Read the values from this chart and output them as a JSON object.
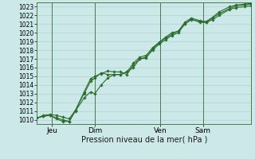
{
  "xlabel": "Pression niveau de la mer( hPa )",
  "bg_color": "#cce8e8",
  "grid_color": "#aacccc",
  "line_color": "#2d6e2d",
  "marker_color": "#2d6e2d",
  "ylim": [
    1009.5,
    1023.5
  ],
  "yticks": [
    1010,
    1011,
    1012,
    1013,
    1014,
    1015,
    1016,
    1017,
    1018,
    1019,
    1020,
    1021,
    1022,
    1023
  ],
  "xtick_labels": [
    "Jeu",
    "Dim",
    "Ven",
    "Sam"
  ],
  "xtick_positions": [
    0.07,
    0.27,
    0.575,
    0.775
  ],
  "vline_positions": [
    0.07,
    0.27,
    0.575,
    0.775
  ],
  "series": [
    [
      [
        0.0,
        1010.2
      ],
      [
        0.03,
        1010.4
      ],
      [
        0.06,
        1010.5
      ],
      [
        0.09,
        1010.2
      ],
      [
        0.12,
        1010.0
      ],
      [
        0.15,
        1009.8
      ],
      [
        0.18,
        1011.1
      ],
      [
        0.22,
        1013.2
      ],
      [
        0.25,
        1014.7
      ],
      [
        0.27,
        1015.0
      ],
      [
        0.3,
        1015.3
      ],
      [
        0.33,
        1015.6
      ],
      [
        0.36,
        1015.5
      ],
      [
        0.39,
        1015.5
      ],
      [
        0.42,
        1015.2
      ],
      [
        0.45,
        1016.3
      ],
      [
        0.48,
        1017.0
      ],
      [
        0.51,
        1017.2
      ],
      [
        0.54,
        1018.0
      ],
      [
        0.57,
        1018.7
      ],
      [
        0.6,
        1019.2
      ],
      [
        0.63,
        1019.7
      ],
      [
        0.66,
        1020.0
      ],
      [
        0.69,
        1021.0
      ],
      [
        0.72,
        1021.6
      ],
      [
        0.76,
        1021.2
      ],
      [
        0.79,
        1021.2
      ],
      [
        0.82,
        1021.7
      ],
      [
        0.85,
        1022.2
      ],
      [
        0.9,
        1022.8
      ],
      [
        0.93,
        1023.1
      ],
      [
        0.97,
        1023.2
      ],
      [
        1.0,
        1023.3
      ]
    ],
    [
      [
        0.0,
        1010.2
      ],
      [
        0.03,
        1010.4
      ],
      [
        0.06,
        1010.5
      ],
      [
        0.09,
        1010.1
      ],
      [
        0.12,
        1009.8
      ],
      [
        0.15,
        1009.8
      ],
      [
        0.18,
        1011.0
      ],
      [
        0.22,
        1012.5
      ],
      [
        0.25,
        1013.2
      ],
      [
        0.27,
        1013.0
      ],
      [
        0.3,
        1014.0
      ],
      [
        0.33,
        1014.8
      ],
      [
        0.36,
        1015.2
      ],
      [
        0.39,
        1015.2
      ],
      [
        0.42,
        1015.5
      ],
      [
        0.45,
        1016.0
      ],
      [
        0.48,
        1017.0
      ],
      [
        0.51,
        1017.1
      ],
      [
        0.54,
        1018.2
      ],
      [
        0.57,
        1018.8
      ],
      [
        0.6,
        1019.4
      ],
      [
        0.63,
        1019.8
      ],
      [
        0.66,
        1020.2
      ],
      [
        0.69,
        1021.0
      ],
      [
        0.72,
        1021.5
      ],
      [
        0.76,
        1021.3
      ],
      [
        0.79,
        1021.2
      ],
      [
        0.82,
        1021.5
      ],
      [
        0.85,
        1022.0
      ],
      [
        0.9,
        1022.7
      ],
      [
        0.93,
        1022.9
      ],
      [
        0.97,
        1023.0
      ],
      [
        1.0,
        1023.1
      ]
    ],
    [
      [
        0.0,
        1010.2
      ],
      [
        0.03,
        1010.5
      ],
      [
        0.06,
        1010.6
      ],
      [
        0.09,
        1010.5
      ],
      [
        0.12,
        1010.3
      ],
      [
        0.15,
        1010.1
      ],
      [
        0.18,
        1011.1
      ],
      [
        0.22,
        1013.0
      ],
      [
        0.25,
        1014.4
      ],
      [
        0.27,
        1014.8
      ],
      [
        0.3,
        1015.4
      ],
      [
        0.33,
        1015.2
      ],
      [
        0.36,
        1015.2
      ],
      [
        0.39,
        1015.2
      ],
      [
        0.42,
        1015.5
      ],
      [
        0.45,
        1016.5
      ],
      [
        0.48,
        1017.2
      ],
      [
        0.51,
        1017.4
      ],
      [
        0.54,
        1018.3
      ],
      [
        0.57,
        1018.9
      ],
      [
        0.6,
        1019.5
      ],
      [
        0.63,
        1020.0
      ],
      [
        0.66,
        1020.2
      ],
      [
        0.69,
        1021.2
      ],
      [
        0.72,
        1021.7
      ],
      [
        0.76,
        1021.4
      ],
      [
        0.79,
        1021.3
      ],
      [
        0.82,
        1021.8
      ],
      [
        0.85,
        1022.4
      ],
      [
        0.9,
        1023.0
      ],
      [
        0.93,
        1023.2
      ],
      [
        0.97,
        1023.3
      ],
      [
        1.0,
        1023.4
      ]
    ]
  ]
}
